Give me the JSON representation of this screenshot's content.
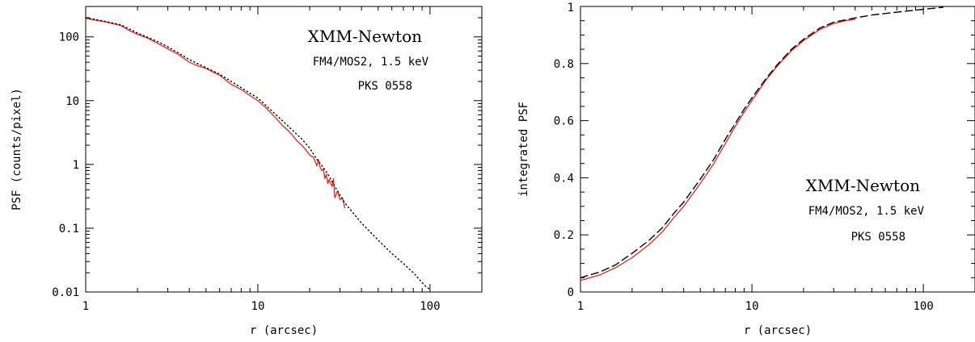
{
  "chart_data": [
    {
      "type": "line",
      "xscale": "log",
      "yscale": "log",
      "xlim": [
        1,
        200
      ],
      "ylim": [
        0.01,
        300
      ],
      "xlabel": "r (arcsec)",
      "ylabel": "PSF (counts/pixel)",
      "xticklabels": [
        {
          "value": 1,
          "label": "1"
        },
        {
          "value": 10,
          "label": "10"
        },
        {
          "value": 100,
          "label": "100"
        }
      ],
      "yticklabels": [
        {
          "value": 0.01,
          "label": "0.01"
        },
        {
          "value": 0.1,
          "label": "0.1"
        },
        {
          "value": 1,
          "label": "1"
        },
        {
          "value": 10,
          "label": "10"
        },
        {
          "value": 100,
          "label": "100"
        }
      ],
      "annotations": [
        "XMM-Newton",
        "FM4/MOS2, 1.5 keV",
        "PKS 0558"
      ],
      "series": [
        {
          "style": "solid",
          "color": "#e8231c",
          "x": [
            1.0,
            1.3,
            1.6,
            1.8,
            2.0,
            2.3,
            2.6,
            3.0,
            3.5,
            4.0,
            4.5,
            5.0,
            6.0,
            7.0,
            8.0,
            9.0,
            10.0,
            11.0,
            12.0,
            13.0,
            14.0,
            15.0,
            16.0,
            17.0,
            18.0,
            19.0,
            20.0,
            21.0,
            22.0,
            22.5,
            23.0,
            23.5,
            24.0,
            24.5,
            25.0,
            25.5,
            26.0,
            27.0,
            27.5,
            28.0,
            29.0,
            30.0,
            31.0,
            32.0
          ],
          "y": [
            195,
            172,
            150,
            125,
            110,
            95,
            80,
            65,
            52,
            40,
            35,
            32,
            25,
            18,
            15,
            12,
            10,
            8.0,
            6.3,
            5.0,
            4.0,
            3.4,
            2.8,
            2.3,
            2.0,
            1.7,
            1.4,
            1.3,
            0.95,
            1.2,
            0.9,
            0.8,
            0.85,
            0.6,
            0.7,
            0.5,
            0.58,
            0.45,
            0.6,
            0.3,
            0.38,
            0.28,
            0.3,
            0.21
          ]
        },
        {
          "style": "dotted",
          "color": "#000000",
          "x": [
            1.0,
            1.3,
            1.6,
            2.0,
            2.6,
            3.0,
            3.5,
            4.0,
            5.0,
            6.0,
            7.0,
            8.0,
            10.0,
            12.0,
            15.0,
            18.0,
            20.0,
            22.0,
            24.0,
            26.0,
            28.0,
            32.0,
            40.0,
            50.0,
            60.0,
            70.0,
            80.0,
            90.0,
            95.0,
            100.0
          ],
          "y": [
            200,
            175,
            155,
            115,
            85,
            70,
            55,
            44,
            33,
            26,
            20,
            16,
            11,
            7.0,
            4.0,
            2.5,
            1.8,
            1.2,
            0.9,
            0.65,
            0.45,
            0.25,
            0.12,
            0.065,
            0.04,
            0.028,
            0.02,
            0.014,
            0.012,
            0.011
          ]
        }
      ]
    },
    {
      "type": "line",
      "xscale": "log",
      "yscale": "linear",
      "xlim": [
        1,
        200
      ],
      "ylim": [
        0,
        1
      ],
      "xlabel": "r (arcsec)",
      "ylabel": "integrated PSF",
      "xticklabels": [
        {
          "value": 1,
          "label": "1"
        },
        {
          "value": 10,
          "label": "10"
        },
        {
          "value": 100,
          "label": "100"
        }
      ],
      "yticklabels": [
        {
          "value": 0,
          "label": "0"
        },
        {
          "value": 0.2,
          "label": "0.2"
        },
        {
          "value": 0.4,
          "label": "0.4"
        },
        {
          "value": 0.6,
          "label": "0.6"
        },
        {
          "value": 0.8,
          "label": "0.8"
        },
        {
          "value": 1,
          "label": "1"
        }
      ],
      "annotations": [
        "XMM-Newton",
        "FM4/MOS2, 1.5 keV",
        "PKS 0558"
      ],
      "series": [
        {
          "style": "solid",
          "color": "#e8231c",
          "x": [
            1.0,
            1.3,
            1.6,
            2.0,
            2.5,
            3.0,
            3.5,
            4.0,
            5.0,
            6.0,
            7.0,
            8.0,
            9.0,
            10.0,
            12.0,
            14.0,
            17.0,
            20.0,
            25.0,
            30.0,
            35.0,
            40.0
          ],
          "y": [
            0.04,
            0.06,
            0.085,
            0.12,
            0.165,
            0.21,
            0.26,
            0.3,
            0.38,
            0.45,
            0.52,
            0.58,
            0.63,
            0.67,
            0.74,
            0.79,
            0.845,
            0.88,
            0.92,
            0.94,
            0.95,
            0.955
          ]
        },
        {
          "style": "dashed",
          "color": "#000000",
          "x": [
            1.0,
            1.3,
            1.6,
            2.0,
            2.5,
            3.0,
            3.5,
            4.0,
            5.0,
            6.0,
            7.0,
            8.0,
            9.0,
            10.0,
            12.0,
            14.0,
            17.0,
            20.0,
            25.0,
            30.0,
            40.0,
            50.0,
            70.0,
            100.0,
            130.0
          ],
          "y": [
            0.05,
            0.07,
            0.095,
            0.135,
            0.18,
            0.225,
            0.275,
            0.315,
            0.395,
            0.465,
            0.535,
            0.59,
            0.64,
            0.68,
            0.745,
            0.795,
            0.85,
            0.885,
            0.925,
            0.945,
            0.96,
            0.97,
            0.98,
            0.99,
            0.997
          ]
        }
      ]
    }
  ]
}
